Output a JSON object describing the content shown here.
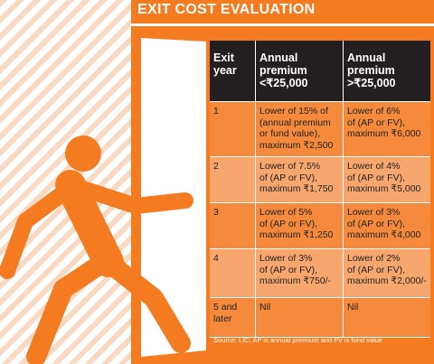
{
  "title": "EXIT COST EVALUATION",
  "table": {
    "header": [
      [
        "Exit",
        "year"
      ],
      [
        "Annual",
        "premium",
        "<₹25,000"
      ],
      [
        "Annual",
        "premium",
        ">₹25,000"
      ]
    ],
    "rows": [
      [
        [
          "1"
        ],
        [
          "Lower of 15% of",
          "(annual premium",
          "or fund value),",
          "maximum ₹2,500"
        ],
        [
          "Lower of 6%",
          "of (AP or FV),",
          "maximum ₹6,000"
        ]
      ],
      [
        [
          "2"
        ],
        [
          "Lower of 7.5%",
          "of (AP or FV),",
          "maximum ₹1,750"
        ],
        [
          "Lower of 4%",
          "of (AP or FV),",
          "maximum ₹5,000"
        ]
      ],
      [
        [
          "3"
        ],
        [
          "Lower of 5%",
          "of (AP or FV),",
          "maximum ₹1,250"
        ],
        [
          "Lower of 3%",
          "of (AP or FV),",
          "maximum ₹4,000"
        ]
      ],
      [
        [
          "4"
        ],
        [
          "Lower of 3%",
          "of (AP or FV),",
          "maximum ₹750/-"
        ],
        [
          "Lower of 2%",
          "of (AP or FV),",
          "maximum ₹2,000/-"
        ]
      ],
      [
        [
          "5 and",
          "later"
        ],
        [
          "Nil"
        ],
        [
          "Nil"
        ]
      ]
    ]
  },
  "source": "Source: LIC; AP is annual premium and FV is fund value"
}
